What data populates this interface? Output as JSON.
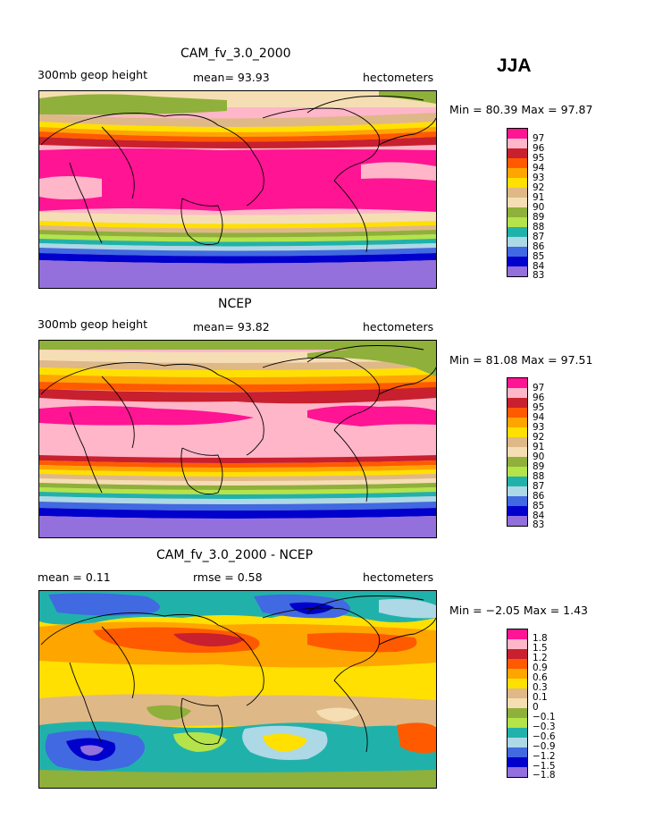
{
  "season": "JJA",
  "units": "hectometers",
  "panels": [
    {
      "title": "CAM_fv_3.0_2000",
      "left_label": "300mb  geop height",
      "mean_label": "mean=  93.93",
      "units": "hectometers",
      "minmax": "Min =   80.39  Max =    97.87",
      "legend_labels": [
        "97",
        "96",
        "95",
        "94",
        "93",
        "92",
        "91",
        "90",
        "89",
        "88",
        "87",
        "86",
        "85",
        "84",
        "83"
      ],
      "legend_colors": [
        "#ff1493",
        "#ffb6c8",
        "#c8202e",
        "#ff5a00",
        "#ffa500",
        "#ffe000",
        "#deb887",
        "#f5deb3",
        "#8fb03a",
        "#b4e34a",
        "#20b2aa",
        "#add8e6",
        "#4169e1",
        "#0000cd",
        "#9370db"
      ]
    },
    {
      "title": "NCEP",
      "left_label": "300mb  geop height",
      "mean_label": "mean=  93.82",
      "units": "hectometers",
      "minmax": "Min =   81.08  Max =    97.51",
      "legend_labels": [
        "97",
        "96",
        "95",
        "94",
        "93",
        "92",
        "91",
        "90",
        "89",
        "88",
        "87",
        "86",
        "85",
        "84",
        "83"
      ],
      "legend_colors": [
        "#ff1493",
        "#ffb6c8",
        "#c8202e",
        "#ff5a00",
        "#ffa500",
        "#ffe000",
        "#deb887",
        "#f5deb3",
        "#8fb03a",
        "#b4e34a",
        "#20b2aa",
        "#add8e6",
        "#4169e1",
        "#0000cd",
        "#9370db"
      ]
    },
    {
      "title": "CAM_fv_3.0_2000 - NCEP",
      "left_label": "mean =     0.11",
      "mean_label": "rmse =     0.58",
      "units": "hectometers",
      "minmax": "Min =   −2.05  Max =     1.43",
      "legend_labels": [
        "1.8",
        "1.5",
        "1.2",
        "0.9",
        "0.6",
        "0.3",
        "0.1",
        "0",
        "−0.1",
        "−0.3",
        "−0.6",
        "−0.9",
        "−1.2",
        "−1.5",
        "−1.8"
      ],
      "legend_colors": [
        "#ff1493",
        "#ffb6c8",
        "#c8202e",
        "#ff5a00",
        "#ffa500",
        "#ffe000",
        "#deb887",
        "#f5deb3",
        "#8fb03a",
        "#b4e34a",
        "#20b2aa",
        "#add8e6",
        "#4169e1",
        "#0000cd",
        "#9370db"
      ]
    }
  ]
}
